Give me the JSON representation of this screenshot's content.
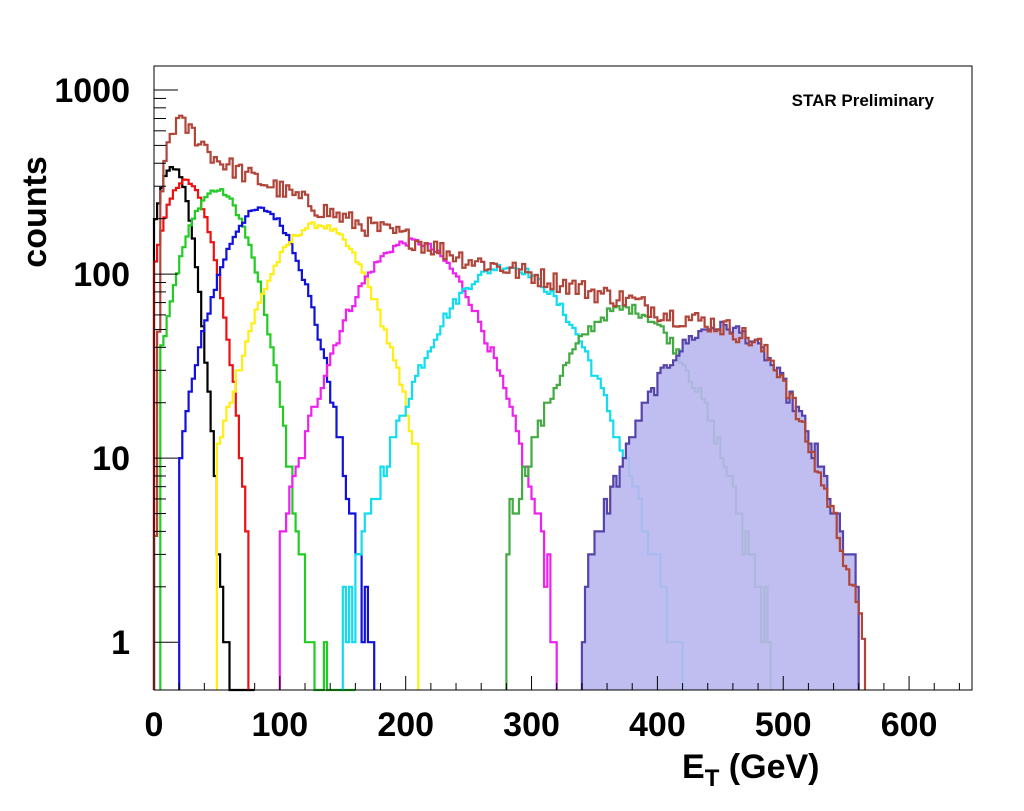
{
  "chart_data": {
    "type": "histogram",
    "title": "",
    "annotation": "STAR Preliminary",
    "xlabel": {
      "main": "E",
      "sub": "T",
      "rest": " (GeV)"
    },
    "ylabel": "counts",
    "xlim": [
      0,
      650
    ],
    "ylim": [
      0.55,
      1350
    ],
    "yscale": "log",
    "grid": false,
    "x_tick_labels": [
      "0",
      "100",
      "200",
      "300",
      "400",
      "500",
      "600"
    ],
    "x_tick_values": [
      0,
      100,
      200,
      300,
      400,
      500,
      600
    ],
    "y_tick_labels": [
      "1",
      "10",
      "100",
      "1000"
    ],
    "y_tick_values": [
      1,
      10,
      100,
      1000
    ],
    "bin_width": 2.5,
    "total": {
      "name": "",
      "color": "#b0453a",
      "points": [
        [
          0,
          1
        ],
        [
          5,
          200
        ],
        [
          10,
          500
        ],
        [
          18,
          680
        ],
        [
          30,
          600
        ],
        [
          50,
          420
        ],
        [
          80,
          330
        ],
        [
          100,
          290
        ],
        [
          130,
          230
        ],
        [
          160,
          190
        ],
        [
          200,
          160
        ],
        [
          250,
          120
        ],
        [
          300,
          100
        ],
        [
          350,
          80
        ],
        [
          380,
          72
        ],
        [
          410,
          60
        ],
        [
          440,
          55
        ],
        [
          460,
          50
        ],
        [
          480,
          42
        ],
        [
          500,
          28
        ],
        [
          520,
          12
        ],
        [
          540,
          5
        ],
        [
          555,
          2
        ],
        [
          565,
          1
        ]
      ]
    },
    "series": [
      {
        "name": "",
        "color": "#000000",
        "center": 15,
        "sigma": 12,
        "peak": 380,
        "range": [
          0,
          80
        ]
      },
      {
        "name": "",
        "color": "#ee1111",
        "center": 25,
        "sigma": 17,
        "peak": 320,
        "range": [
          0,
          75
        ]
      },
      {
        "name": "",
        "color": "#22cc22",
        "center": 50,
        "sigma": 22,
        "peak": 285,
        "range": [
          5,
          160
        ]
      },
      {
        "name": "",
        "color": "#1111dd",
        "center": 85,
        "sigma": 26,
        "peak": 225,
        "range": [
          20,
          175
        ]
      },
      {
        "name": "",
        "color": "#ffee11",
        "center": 130,
        "sigma": 33,
        "peak": 185,
        "range": [
          50,
          210
        ]
      },
      {
        "name": "",
        "color": "#ee22ee",
        "center": 205,
        "sigma": 38,
        "peak": 150,
        "range": [
          100,
          320
        ]
      },
      {
        "name": "",
        "color": "#11ddee",
        "center": 280,
        "sigma": 43,
        "peak": 110,
        "range": [
          150,
          420
        ]
      },
      {
        "name": "",
        "color": "#44aa44",
        "center": 375,
        "sigma": 40,
        "peak": 65,
        "range": [
          280,
          490
        ]
      },
      {
        "name": "",
        "color": "#5544aa",
        "fill": "#b9b7ee",
        "center": 450,
        "sigma": 42,
        "peak": 52,
        "range": [
          340,
          560
        ]
      }
    ]
  }
}
